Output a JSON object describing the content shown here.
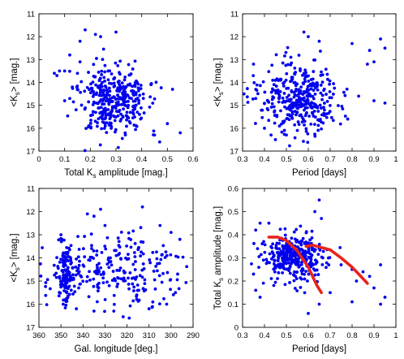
{
  "chart_data": [
    {
      "type": "scatter",
      "xlabel_parts": [
        "Total K",
        "s",
        " amplitude [mag.]"
      ],
      "ylabel_parts": [
        "<K",
        "s",
        "> [mag.]"
      ],
      "xlim": [
        0,
        0.6
      ],
      "ylim": [
        11,
        17
      ],
      "y_inverted": true,
      "xticks": [
        "0",
        "0.1",
        "0.2",
        "0.3",
        "0.4",
        "0.5",
        "0.6"
      ],
      "yticks": [
        "11",
        "12",
        "13",
        "14",
        "15",
        "16",
        "17"
      ],
      "marker_color": "#0000ee",
      "cluster": {
        "center": [
          0.295,
          14.8
        ],
        "spread": [
          0.065,
          0.75
        ],
        "n": 360,
        "seed": 11
      },
      "points": [
        [
          0.06,
          13.6
        ],
        [
          0.07,
          13.7
        ],
        [
          0.08,
          13.5
        ],
        [
          0.1,
          13.5
        ],
        [
          0.12,
          12.8
        ],
        [
          0.13,
          14.2
        ],
        [
          0.15,
          13.6
        ],
        [
          0.16,
          12.2
        ],
        [
          0.18,
          11.7
        ],
        [
          0.22,
          11.9
        ],
        [
          0.24,
          12.0
        ],
        [
          0.3,
          11.8
        ],
        [
          0.45,
          16.3
        ],
        [
          0.47,
          16.6
        ],
        [
          0.5,
          15.8
        ],
        [
          0.55,
          16.2
        ],
        [
          0.52,
          14.3
        ],
        [
          0.1,
          14.8
        ],
        [
          0.12,
          14.7
        ],
        [
          0.16,
          13.1
        ]
      ]
    },
    {
      "type": "scatter",
      "xlabel": "Period [days]",
      "ylabel_parts": [
        "<K",
        "s",
        "> [mag.]"
      ],
      "xlim": [
        0.3,
        1.0
      ],
      "ylim": [
        11,
        17
      ],
      "y_inverted": true,
      "xticks": [
        "0.3",
        "0.4",
        "0.5",
        "0.6",
        "0.7",
        "0.8",
        "0.9",
        "1"
      ],
      "yticks": [
        "11",
        "12",
        "13",
        "14",
        "15",
        "16",
        "17"
      ],
      "marker_color": "#0000ee",
      "cluster": {
        "center": [
          0.55,
          14.7
        ],
        "spread": [
          0.09,
          0.75
        ],
        "n": 360,
        "seed": 23
      },
      "points": [
        [
          0.58,
          11.8
        ],
        [
          0.6,
          12.0
        ],
        [
          0.65,
          12.2
        ],
        [
          0.8,
          12.3
        ],
        [
          0.88,
          12.6
        ],
        [
          0.93,
          12.1
        ],
        [
          0.95,
          12.5
        ],
        [
          0.9,
          13.1
        ],
        [
          0.87,
          13.2
        ],
        [
          0.9,
          14.8
        ],
        [
          0.95,
          14.9
        ],
        [
          0.83,
          14.6
        ],
        [
          0.78,
          15.6
        ],
        [
          0.4,
          16.0
        ],
        [
          0.43,
          16.3
        ],
        [
          0.45,
          16.5
        ],
        [
          0.5,
          16.3
        ],
        [
          0.55,
          16.1
        ],
        [
          0.35,
          13.2
        ],
        [
          0.36,
          14.7
        ]
      ]
    },
    {
      "type": "scatter",
      "xlabel": "Gal. longitude [deg.]",
      "ylabel_parts": [
        "<K",
        "s",
        "> [mag.]"
      ],
      "xlim": [
        360,
        290
      ],
      "ylim": [
        11,
        17
      ],
      "y_inverted": true,
      "x_inverted": true,
      "xticks": [
        "360",
        "350",
        "340",
        "330",
        "320",
        "310",
        "300",
        "290"
      ],
      "yticks": [
        "11",
        "12",
        "13",
        "14",
        "15",
        "16",
        "17"
      ],
      "marker_color": "#0000ee",
      "cluster": {
        "center": [
          325,
          14.6
        ],
        "spread": [
          15,
          0.8
        ],
        "n": 250,
        "seed": 37
      },
      "subcluster": {
        "center": [
          348,
          14.7
        ],
        "spread": [
          1.6,
          0.6
        ],
        "n": 110,
        "seed": 41
      },
      "points": [
        [
          338,
          12.1
        ],
        [
          335,
          12.2
        ],
        [
          332,
          11.9
        ],
        [
          330,
          12.6
        ],
        [
          313,
          11.8
        ],
        [
          305,
          12.6
        ],
        [
          300,
          12.9
        ],
        [
          296,
          13.2
        ],
        [
          343,
          16.2
        ],
        [
          335,
          16.3
        ],
        [
          326,
          16.3
        ],
        [
          319,
          16.6
        ],
        [
          310,
          16.2
        ],
        [
          302,
          16.0
        ],
        [
          298,
          15.5
        ],
        [
          297,
          14.7
        ],
        [
          350,
          13.0
        ],
        [
          349,
          16.0
        ]
      ]
    },
    {
      "type": "scatter",
      "xlabel": "Period [days]",
      "ylabel_parts": [
        "Total K",
        "s",
        " amplitude [mag.]"
      ],
      "xlim": [
        0.3,
        1.0
      ],
      "ylim": [
        0,
        0.6
      ],
      "xticks": [
        "0.3",
        "0.4",
        "0.5",
        "0.6",
        "0.7",
        "0.8",
        "0.9",
        "1"
      ],
      "yticks": [
        "0",
        "0.1",
        "0.2",
        "0.3",
        "0.4",
        "0.5",
        "0.6"
      ],
      "marker_color": "#0000ee",
      "cluster": {
        "center": [
          0.54,
          0.3
        ],
        "spread": [
          0.075,
          0.05
        ],
        "n": 340,
        "seed": 53
      },
      "points": [
        [
          0.65,
          0.55
        ],
        [
          0.63,
          0.5
        ],
        [
          0.66,
          0.47
        ],
        [
          0.42,
          0.45
        ],
        [
          0.38,
          0.45
        ],
        [
          0.36,
          0.42
        ],
        [
          0.75,
          0.27
        ],
        [
          0.8,
          0.25
        ],
        [
          0.85,
          0.24
        ],
        [
          0.88,
          0.22
        ],
        [
          0.93,
          0.27
        ],
        [
          0.9,
          0.17
        ],
        [
          0.95,
          0.13
        ],
        [
          0.93,
          0.1
        ],
        [
          0.7,
          0.15
        ],
        [
          0.6,
          0.06
        ],
        [
          0.65,
          0.1
        ],
        [
          0.35,
          0.23
        ],
        [
          0.38,
          0.13
        ],
        [
          0.36,
          0.16
        ],
        [
          0.82,
          0.2
        ],
        [
          0.8,
          0.11
        ]
      ],
      "curves_color": "#e8241c",
      "curves": [
        [
          [
            0.42,
            0.39
          ],
          [
            0.46,
            0.39
          ],
          [
            0.5,
            0.375
          ],
          [
            0.55,
            0.33
          ],
          [
            0.6,
            0.26
          ],
          [
            0.64,
            0.18
          ],
          [
            0.66,
            0.15
          ]
        ],
        [
          [
            0.59,
            0.35
          ],
          [
            0.62,
            0.355
          ],
          [
            0.66,
            0.345
          ],
          [
            0.7,
            0.335
          ],
          [
            0.75,
            0.3
          ],
          [
            0.8,
            0.26
          ],
          [
            0.84,
            0.22
          ],
          [
            0.87,
            0.19
          ]
        ]
      ]
    }
  ]
}
